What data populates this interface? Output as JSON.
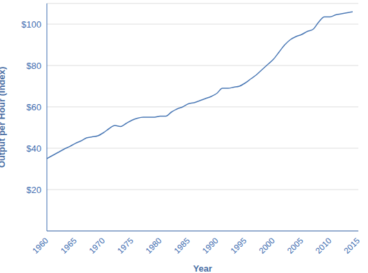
{
  "chart_data": {
    "type": "line",
    "x_label": "Year",
    "y_label": "Output per Hour (Index)",
    "x": [
      1960,
      1961,
      1962,
      1963,
      1964,
      1965,
      1966,
      1967,
      1968,
      1969,
      1970,
      1971,
      1972,
      1973,
      1974,
      1975,
      1976,
      1977,
      1978,
      1979,
      1980,
      1981,
      1982,
      1983,
      1984,
      1985,
      1986,
      1987,
      1988,
      1989,
      1990,
      1991,
      1992,
      1993,
      1994,
      1995,
      1996,
      1997,
      1998,
      1999,
      2000,
      2001,
      2002,
      2003,
      2004,
      2005,
      2006,
      2007,
      2008,
      2009,
      2010,
      2011,
      2012,
      2013,
      2014
    ],
    "values": [
      35,
      36.5,
      38,
      39.5,
      40.8,
      42.3,
      43.5,
      45,
      45.5,
      46,
      47.5,
      49.5,
      51,
      50.5,
      52,
      53.5,
      54.5,
      55,
      55,
      55,
      55.5,
      55.5,
      57.5,
      59,
      60,
      61.5,
      62,
      63,
      64,
      65,
      66.5,
      69,
      69,
      69.5,
      70,
      71.5,
      73.5,
      75.5,
      78,
      80.5,
      83,
      86.5,
      90,
      92.5,
      94,
      95,
      96.5,
      97.5,
      101,
      103.5,
      103.5,
      104.5,
      105,
      105.5,
      106
    ],
    "color": "#4a78b5",
    "xlim": [
      1960,
      2015
    ],
    "xticks": [
      1960,
      1965,
      1970,
      1975,
      1980,
      1985,
      1990,
      1995,
      2000,
      2005,
      2010,
      2015
    ],
    "ylim": [
      0,
      110
    ],
    "yticks": [
      {
        "value": 20,
        "label": "$20"
      },
      {
        "value": 40,
        "label": "$40"
      },
      {
        "value": 60,
        "label": "$60"
      },
      {
        "value": 80,
        "label": "$80"
      },
      {
        "value": 100,
        "label": "$100"
      }
    ],
    "grid": true
  }
}
